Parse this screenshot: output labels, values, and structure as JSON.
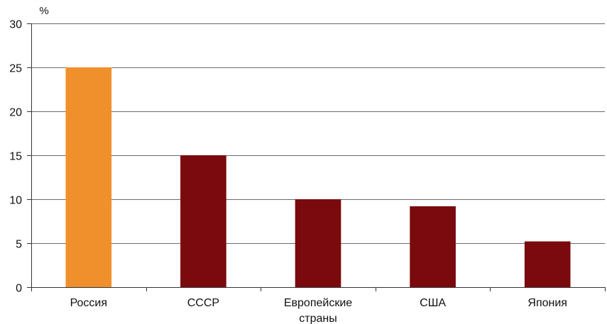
{
  "chart_data": {
    "type": "bar",
    "categories": [
      "Россия",
      "СССР",
      "Европейские страны",
      "США",
      "Япония"
    ],
    "category_label_lines": [
      [
        "Россия"
      ],
      [
        "СССР"
      ],
      [
        "Европейские",
        "страны"
      ],
      [
        "США"
      ],
      [
        "Япония"
      ]
    ],
    "values": [
      25,
      15,
      10,
      9.2,
      5.2
    ],
    "bar_colors": [
      "#f0902c",
      "#7a0a0e",
      "#7a0a0e",
      "#7a0a0e",
      "#7a0a0e"
    ],
    "ylabel": "%",
    "ylim": [
      0,
      30
    ],
    "yticks": [
      0,
      5,
      10,
      15,
      20,
      25,
      30
    ],
    "grid": true,
    "legend": "none"
  }
}
